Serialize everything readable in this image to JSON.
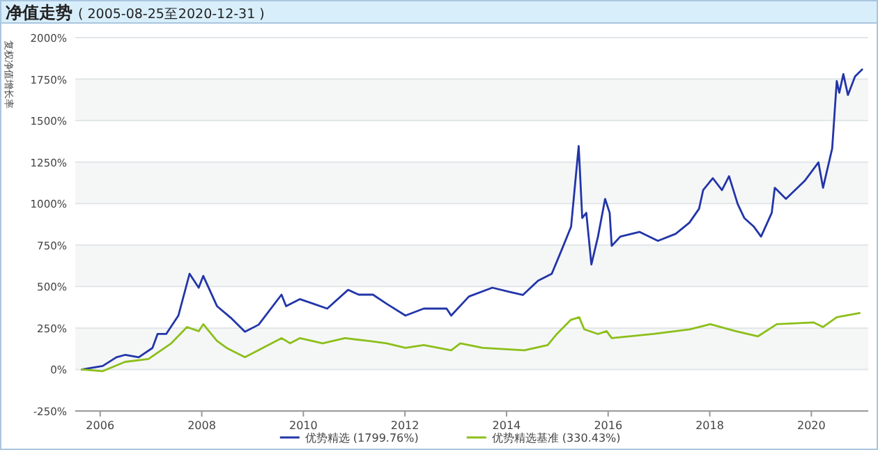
{
  "chart_data": {
    "type": "line",
    "title": "净值走势",
    "subtitle": "( 2005-08-25至2020-12-31 )",
    "ylabel": "复权净值增长率",
    "xlim": [
      2005.51,
      2021.12
    ],
    "xticks": [
      2006,
      2008,
      2010,
      2012,
      2014,
      2016,
      2018,
      2020
    ],
    "ylim": [
      -250,
      2000
    ],
    "yticks": [
      {
        "value": -250,
        "label": "-250%"
      },
      {
        "value": 0,
        "label": "0%"
      },
      {
        "value": 250,
        "label": "250%"
      },
      {
        "value": 500,
        "label": "500%"
      },
      {
        "value": 750,
        "label": "750%"
      },
      {
        "value": 1000,
        "label": "1000%"
      },
      {
        "value": 1250,
        "label": "1250%"
      },
      {
        "value": 1500,
        "label": "1500%"
      },
      {
        "value": 1750,
        "label": "1750%"
      },
      {
        "value": 2000,
        "label": "2000%"
      }
    ],
    "grid": "y",
    "legend": "bottom",
    "marker": "none",
    "line_style": "solid",
    "series": [
      {
        "name": "优势精选 (1799.76%)",
        "color": "#2235a8",
        "x": [
          2005.64,
          2006.05,
          2006.32,
          2006.49,
          2006.76,
          2007.03,
          2007.13,
          2007.3,
          2007.54,
          2007.76,
          2007.94,
          2008.03,
          2008.3,
          2008.57,
          2008.85,
          2009.12,
          2009.57,
          2009.66,
          2009.93,
          2010.2,
          2010.47,
          2010.88,
          2011.09,
          2011.37,
          2011.64,
          2012.01,
          2012.37,
          2012.82,
          2012.91,
          2013.26,
          2013.72,
          2014.08,
          2014.32,
          2014.62,
          2014.89,
          2015.08,
          2015.27,
          2015.42,
          2015.49,
          2015.57,
          2015.67,
          2015.8,
          2015.94,
          2016.03,
          2016.07,
          2016.24,
          2016.62,
          2016.98,
          2017.33,
          2017.6,
          2017.79,
          2017.87,
          2018.06,
          2018.24,
          2018.38,
          2018.55,
          2018.68,
          2018.87,
          2019.01,
          2019.22,
          2019.28,
          2019.5,
          2019.87,
          2020.14,
          2020.23,
          2020.41,
          2020.5,
          2020.55,
          2020.63,
          2020.72,
          2020.86,
          2021.0
        ],
        "values": [
          0,
          21,
          74,
          88,
          74,
          130,
          214,
          214,
          325,
          577,
          493,
          564,
          382,
          312,
          228,
          270,
          451,
          382,
          424,
          396,
          367,
          480,
          451,
          451,
          396,
          325,
          367,
          367,
          325,
          440,
          493,
          466,
          449,
          535,
          577,
          717,
          860,
          1347,
          913,
          944,
          633,
          801,
          1028,
          944,
          745,
          801,
          829,
          775,
          818,
          885,
          969,
          1081,
          1153,
          1081,
          1165,
          997,
          913,
          860,
          801,
          944,
          1095,
          1028,
          1137,
          1248,
          1095,
          1332,
          1738,
          1668,
          1780,
          1654,
          1766,
          1808
        ]
      },
      {
        "name": "优势精选基准 (330.43%)",
        "color": "#8cbf1a",
        "x": [
          2005.64,
          2006.05,
          2006.49,
          2006.95,
          2007.4,
          2007.71,
          2007.94,
          2008.03,
          2008.3,
          2008.49,
          2008.85,
          2009.2,
          2009.57,
          2009.74,
          2009.93,
          2010.38,
          2010.82,
          2011.28,
          2011.64,
          2012.01,
          2012.37,
          2012.91,
          2013.09,
          2013.53,
          2014.35,
          2014.81,
          2014.99,
          2015.26,
          2015.43,
          2015.53,
          2015.8,
          2015.97,
          2016.07,
          2016.89,
          2017.6,
          2018.01,
          2018.51,
          2018.95,
          2019.32,
          2020.04,
          2020.23,
          2020.5,
          2020.95
        ],
        "values": [
          0,
          -10,
          46,
          63,
          158,
          256,
          231,
          273,
          172,
          130,
          74,
          130,
          189,
          158,
          189,
          158,
          189,
          172,
          158,
          130,
          147,
          116,
          158,
          130,
          116,
          147,
          214,
          298,
          315,
          242,
          214,
          231,
          189,
          214,
          242,
          273,
          231,
          200,
          273,
          284,
          256,
          315,
          340
        ]
      }
    ]
  }
}
